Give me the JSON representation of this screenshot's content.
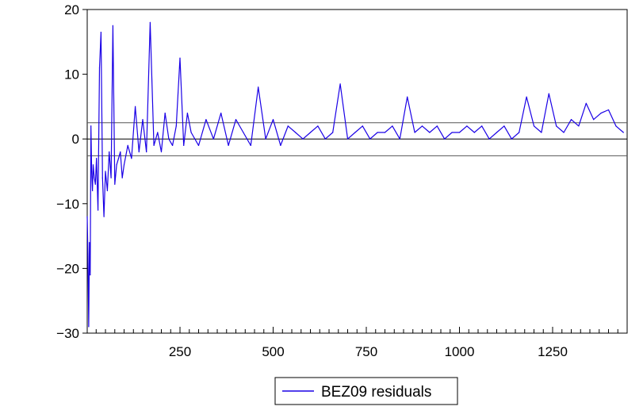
{
  "chart_data": {
    "type": "line",
    "title": "",
    "xlabel": "",
    "ylabel": "",
    "xlim": [
      1,
      1450
    ],
    "ylim": [
      -30,
      20
    ],
    "x_ticks": [
      250,
      500,
      750,
      1000,
      1250
    ],
    "y_ticks": [
      20,
      10,
      0,
      -10,
      -20,
      -30
    ],
    "y_tick_labels": [
      "20",
      "10",
      "0",
      "−10",
      "−20",
      "−30"
    ],
    "reference_lines": [
      {
        "value": 0,
        "color": "#000000"
      },
      {
        "value": 2.5,
        "color": "#555555"
      },
      {
        "value": -2.6,
        "color": "#555555"
      }
    ],
    "series": [
      {
        "name": "BEZ09 residuals",
        "color": "#1a00e6",
        "x": [
          1,
          3,
          5,
          7,
          9,
          11,
          13,
          15,
          17,
          20,
          23,
          26,
          30,
          34,
          38,
          42,
          46,
          50,
          55,
          60,
          65,
          70,
          75,
          80,
          85,
          90,
          95,
          100,
          110,
          120,
          130,
          140,
          150,
          160,
          170,
          180,
          190,
          200,
          210,
          220,
          230,
          240,
          250,
          260,
          270,
          280,
          300,
          320,
          340,
          360,
          380,
          400,
          420,
          440,
          460,
          480,
          500,
          520,
          540,
          560,
          580,
          600,
          620,
          640,
          660,
          680,
          700,
          720,
          740,
          760,
          780,
          800,
          820,
          840,
          860,
          880,
          900,
          920,
          940,
          960,
          980,
          1000,
          1020,
          1040,
          1060,
          1080,
          1100,
          1120,
          1140,
          1160,
          1180,
          1200,
          1220,
          1240,
          1260,
          1280,
          1300,
          1320,
          1340,
          1360,
          1380,
          1400,
          1420,
          1440
        ],
        "values": [
          -12,
          -18,
          -29,
          -16,
          -21,
          2,
          -5,
          -8,
          -4,
          -6,
          -7,
          -3,
          -11,
          11,
          16.5,
          -6,
          -12,
          -5,
          -8,
          -2,
          -6,
          17.5,
          -7,
          -4,
          -3,
          -2,
          -6,
          -4,
          -1,
          -3,
          5,
          -2,
          3,
          -2,
          18,
          -1,
          1,
          -2,
          4,
          0,
          -1,
          2,
          12.5,
          -1,
          4,
          1,
          -1,
          3,
          0,
          4,
          -1,
          3,
          1,
          -1,
          8,
          0,
          3,
          -1,
          2,
          1,
          0,
          1,
          2,
          0,
          1,
          8.5,
          0,
          1,
          2,
          0,
          1,
          1,
          2,
          0,
          6.5,
          1,
          2,
          1,
          2,
          0,
          1,
          1,
          2,
          1,
          2,
          0,
          1,
          2,
          0,
          1,
          6.5,
          2,
          1,
          7,
          2,
          1,
          3,
          2,
          5.5,
          3,
          4,
          4.5,
          2,
          1
        ]
      }
    ],
    "legend": {
      "placement": "bottom-center",
      "label": "BEZ09 residuals"
    }
  }
}
